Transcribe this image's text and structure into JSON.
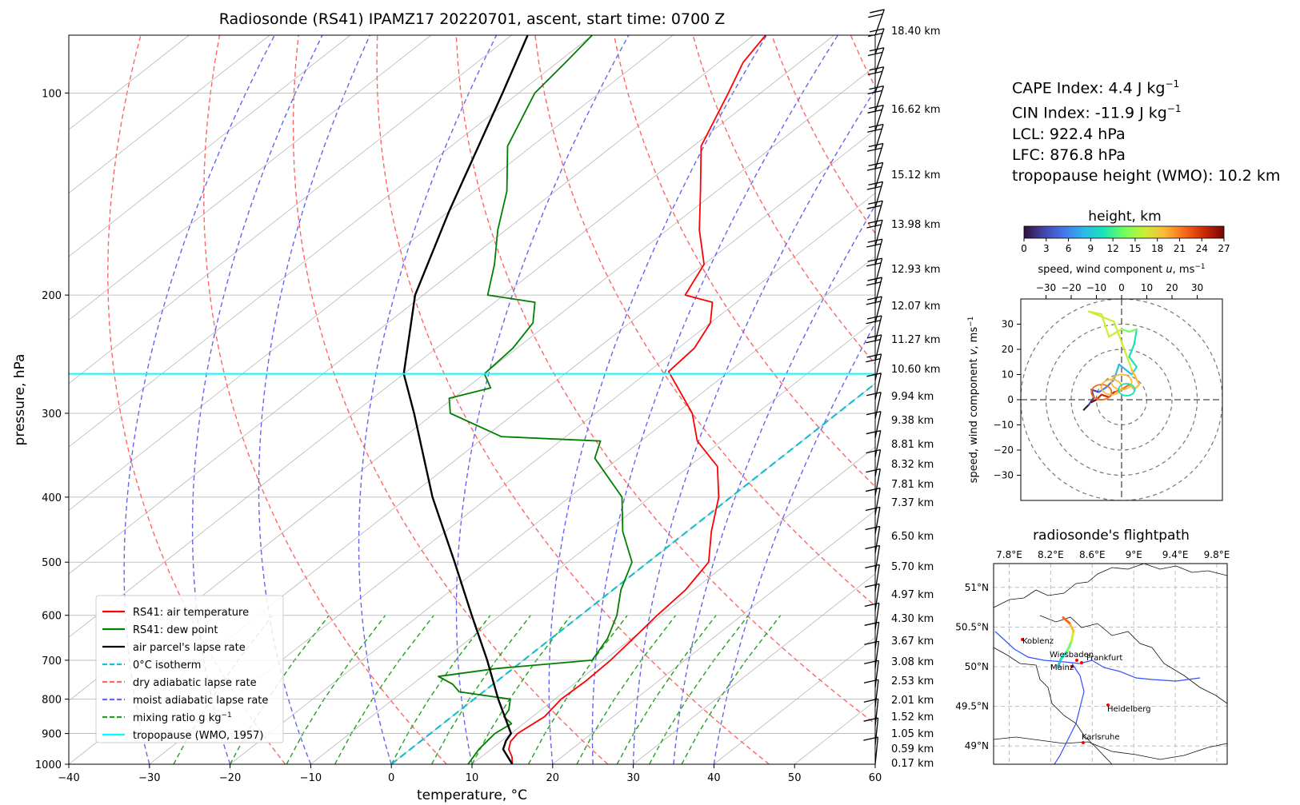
{
  "skewt": {
    "title": "Radiosonde (RS41) IPAMZ17 20220701, ascent, start time: 0700 Z",
    "xlabel": "temperature, °C",
    "ylabel": "pressure, hPa",
    "x_ticks": [
      "−40",
      "−30",
      "−20",
      "−10",
      "0",
      "10",
      "20",
      "30",
      "40",
      "50",
      "60"
    ],
    "y_ticks": [
      "100",
      "200",
      "300",
      "400",
      "500",
      "600",
      "700",
      "800",
      "900",
      "1000"
    ],
    "heights": [
      "18.40 km",
      "16.62 km",
      "15.12 km",
      "13.98 km",
      "12.93 km",
      "12.07 km",
      "11.27 km",
      "10.60 km",
      "9.94 km",
      "9.38 km",
      "8.81 km",
      "8.32 km",
      "7.81 km",
      "7.37 km",
      "6.50 km",
      "5.70 km",
      "4.97 km",
      "4.30 km",
      "3.67 km",
      "3.08 km",
      "2.53 km",
      "2.01 km",
      "1.52 km",
      "1.05 km",
      "0.59 km",
      "0.17 km"
    ],
    "legend": [
      {
        "label": "RS41: air temperature",
        "color": "#ff0000",
        "dash": false
      },
      {
        "label": "RS41: dew point",
        "color": "#008000",
        "dash": false
      },
      {
        "label": "air parcel's lapse rate",
        "color": "#000000",
        "dash": false
      },
      {
        "label": "0°C isotherm",
        "color": "#17becf",
        "dash": true
      },
      {
        "label": "dry adiabatic lapse rate",
        "color": "#ff6666",
        "dash": true
      },
      {
        "label": "moist adiabatic lapse rate",
        "color": "#6666ee",
        "dash": true
      },
      {
        "label": "mixing ratio g kg",
        "sup": "−1",
        "color": "#22a022",
        "dash": true
      },
      {
        "label": "tropopause (WMO, 1957)",
        "color": "#00ffff",
        "dash": false
      }
    ]
  },
  "stats": {
    "cape": "CAPE Index: 4.4 J kg",
    "cape_sup": "−1",
    "cin": "CIN Index: -11.9 J kg",
    "cin_sup": "−1",
    "lcl": "LCL: 922.4 hPa",
    "lfc": "LFC: 876.8 hPa",
    "tropopause": "tropopause height (WMO): 10.2 km"
  },
  "colorbar": {
    "title": "height, km",
    "ticks": [
      "0",
      "3",
      "6",
      "9",
      "12",
      "15",
      "18",
      "21",
      "24",
      "27"
    ]
  },
  "hodograph": {
    "xlabel": "speed, wind component ",
    "xlabel_var": "u",
    "xlabel_unit": ", ms",
    "ylabel": "speed, wind component ",
    "ylabel_var": "v",
    "ylabel_unit": ", ms",
    "unit_sup": "−1",
    "x_ticks": [
      "−30",
      "−20",
      "−10",
      "0",
      "10",
      "20",
      "30"
    ],
    "y_ticks": [
      "30",
      "20",
      "10",
      "0",
      "−10",
      "−20",
      "−30"
    ]
  },
  "map": {
    "title": "radiosonde's flightpath",
    "lon_ticks": [
      "7.8°E",
      "8.2°E",
      "8.6°E",
      "9°E",
      "9.4°E",
      "9.8°E"
    ],
    "lat_ticks": [
      "51°N",
      "50.5°N",
      "50°N",
      "49.5°N",
      "49°N"
    ],
    "cities": [
      "Koblenz",
      "Wiesbaden",
      "Frankfurt",
      "Mainz",
      "Heidelberg",
      "Karlsruhe"
    ]
  },
  "chart_data": [
    {
      "type": "line",
      "subtype": "skew-T log-P",
      "title": "Radiosonde (RS41) IPAMZ17 20220701, ascent, start time: 0700 Z",
      "xlabel": "temperature, °C",
      "ylabel": "pressure, hPa",
      "xlim": [
        -40,
        60
      ],
      "ylim": [
        1000,
        82
      ],
      "yscale": "log",
      "grid": true,
      "legend_position": "lower-left",
      "series": [
        {
          "name": "RS41: air temperature",
          "color": "#ff0000",
          "points": [
            [
              1000,
              15.0
            ],
            [
              975,
              13.8
            ],
            [
              950,
              12.2
            ],
            [
              925,
              11.2
            ],
            [
              900,
              10.8
            ],
            [
              850,
              11.5
            ],
            [
              800,
              10.8
            ],
            [
              750,
              11.0
            ],
            [
              700,
              10.8
            ],
            [
              650,
              10.2
            ],
            [
              600,
              9.5
            ],
            [
              550,
              9.0
            ],
            [
              500,
              7.5
            ],
            [
              450,
              3.0
            ],
            [
              400,
              -1.5
            ],
            [
              360,
              -6.5
            ],
            [
              330,
              -13.0
            ],
            [
              300,
              -18.0
            ],
            [
              270,
              -25.0
            ],
            [
              260,
              -27.5
            ],
            [
              240,
              -28.0
            ],
            [
              220,
              -30.0
            ],
            [
              205,
              -33.0
            ],
            [
              200,
              -37.5
            ],
            [
              180,
              -40.0
            ],
            [
              160,
              -46.0
            ],
            [
              140,
              -52.0
            ],
            [
              120,
              -59.0
            ],
            [
              100,
              -64.0
            ],
            [
              90,
              -67.0
            ],
            [
              82,
              -68.5
            ]
          ]
        },
        {
          "name": "RS41: dew point",
          "color": "#008000",
          "points": [
            [
              1000,
              9.5
            ],
            [
              950,
              8.5
            ],
            [
              900,
              8.0
            ],
            [
              870,
              8.5
            ],
            [
              850,
              6.5
            ],
            [
              830,
              6.0
            ],
            [
              800,
              4.5
            ],
            [
              780,
              -3.0
            ],
            [
              760,
              -5.0
            ],
            [
              740,
              -8.0
            ],
            [
              720,
              -2.0
            ],
            [
              700,
              8.5
            ],
            [
              650,
              7.0
            ],
            [
              600,
              4.5
            ],
            [
              550,
              1.0
            ],
            [
              500,
              -2.0
            ],
            [
              450,
              -8.0
            ],
            [
              400,
              -13.5
            ],
            [
              350,
              -23.0
            ],
            [
              330,
              -25.0
            ],
            [
              325,
              -38.0
            ],
            [
              300,
              -48.0
            ],
            [
              285,
              -50.5
            ],
            [
              275,
              -47.0
            ],
            [
              262,
              -50.0
            ],
            [
              240,
              -50.5
            ],
            [
              220,
              -52.0
            ],
            [
              205,
              -55.0
            ],
            [
              200,
              -62.0
            ],
            [
              180,
              -66.0
            ],
            [
              160,
              -71.0
            ],
            [
              140,
              -76.0
            ],
            [
              120,
              -83.0
            ],
            [
              100,
              -88.0
            ],
            [
              90,
              -89.0
            ],
            [
              82,
              -90.0
            ]
          ]
        },
        {
          "name": "air parcel's lapse rate",
          "color": "#000000",
          "points": [
            [
              1000,
              15.0
            ],
            [
              950,
              11.5
            ],
            [
              922,
              10.5
            ],
            [
              900,
              10.0
            ],
            [
              800,
              3.0
            ],
            [
              700,
              -4.5
            ],
            [
              600,
              -13.5
            ],
            [
              500,
              -24.0
            ],
            [
              400,
              -37.0
            ],
            [
              300,
              -52.5
            ],
            [
              262,
              -60.0
            ],
            [
              200,
              -71.0
            ],
            [
              150,
              -80.0
            ],
            [
              100,
              -92.0
            ],
            [
              82,
              -98.0
            ]
          ]
        }
      ],
      "isotherm_0C": true,
      "tropopause_hPa": 262
    },
    {
      "type": "heatmap",
      "subtype": "colorbar",
      "title": "height, km",
      "range": [
        0,
        27
      ],
      "colormap": "turbo"
    },
    {
      "type": "line",
      "subtype": "hodograph",
      "xlabel": "speed, wind component u, ms−1",
      "ylabel": "speed, wind component v, ms−1",
      "xlim": [
        -40,
        40
      ],
      "ylim": [
        -40,
        40
      ],
      "rings": [
        10,
        20,
        30,
        40
      ],
      "points_uv_height": [
        [
          -15,
          -4,
          0
        ],
        [
          -13,
          -2,
          1
        ],
        [
          -11,
          1,
          2
        ],
        [
          -12,
          4,
          3
        ],
        [
          -9,
          3,
          4
        ],
        [
          -6,
          5,
          5
        ],
        [
          -3,
          8,
          6
        ],
        [
          -1,
          14,
          8
        ],
        [
          4,
          10,
          9
        ],
        [
          6,
          13,
          10
        ],
        [
          3,
          17,
          10.5
        ],
        [
          5,
          22,
          11
        ],
        [
          6,
          28,
          12
        ],
        [
          3,
          27,
          13
        ],
        [
          0,
          28,
          14
        ],
        [
          -5,
          25,
          15
        ],
        [
          -8,
          34,
          15.5
        ],
        [
          -13,
          35,
          16
        ],
        [
          -3,
          31,
          17
        ],
        [
          4,
          12,
          17.5
        ],
        [
          7,
          6,
          18
        ],
        [
          5,
          4,
          19
        ],
        [
          3,
          6,
          20
        ],
        [
          0,
          4,
          21
        ],
        [
          -3,
          3,
          22
        ],
        [
          -5,
          1,
          23
        ],
        [
          -8,
          2,
          24
        ],
        [
          -10,
          0,
          25
        ],
        [
          -12,
          -1,
          26
        ]
      ]
    },
    {
      "type": "scatter",
      "subtype": "map",
      "title": "radiosonde's flightpath",
      "xlim": [
        7.8,
        9.8
      ],
      "ylim": [
        48.8,
        51.3
      ],
      "cities": [
        {
          "name": "Koblenz",
          "lon": 7.6,
          "lat": 50.36
        },
        {
          "name": "Wiesbaden",
          "lon": 8.24,
          "lat": 50.08
        },
        {
          "name": "Frankfurt",
          "lon": 8.68,
          "lat": 50.11
        },
        {
          "name": "Mainz",
          "lon": 8.27,
          "lat": 50.0
        },
        {
          "name": "Heidelberg",
          "lon": 8.69,
          "lat": 49.4
        },
        {
          "name": "Karlsruhe",
          "lon": 8.4,
          "lat": 49.01
        }
      ],
      "track": [
        [
          8.27,
          50.0
        ],
        [
          8.3,
          50.1
        ],
        [
          8.36,
          50.2
        ],
        [
          8.4,
          50.32
        ],
        [
          8.42,
          50.45
        ],
        [
          8.38,
          50.55
        ],
        [
          8.32,
          50.62
        ]
      ]
    }
  ]
}
